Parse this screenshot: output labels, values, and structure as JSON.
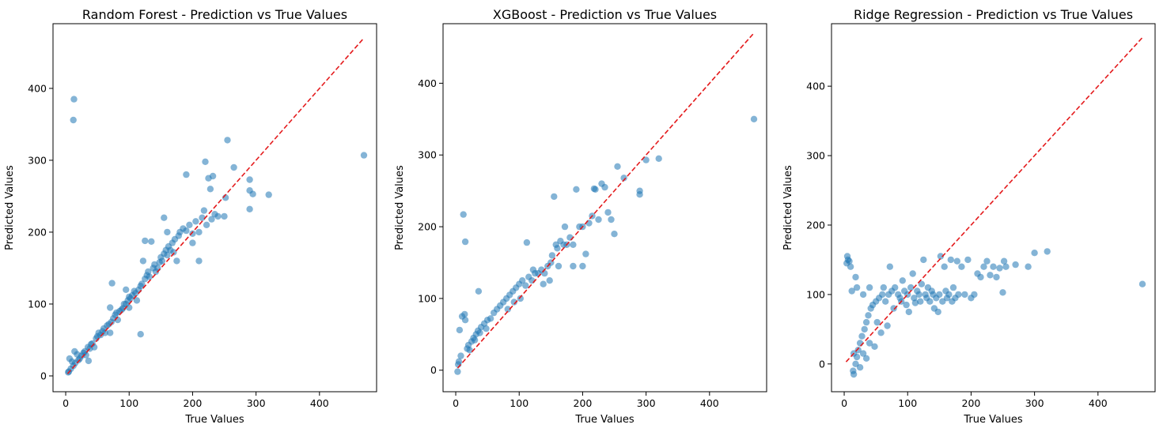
{
  "chart_data": [
    {
      "type": "scatter",
      "title": "Random Forest - Prediction vs True Values",
      "xlabel": "True Values",
      "ylabel": "Predicted Values",
      "xlim": [
        -20,
        490
      ],
      "ylim": [
        -22,
        490
      ],
      "xticks": [
        0,
        100,
        200,
        300,
        400
      ],
      "yticks": [
        0,
        100,
        200,
        300,
        400
      ],
      "grid": false,
      "reference_line": {
        "style": "dashed",
        "color": "#e41a1c",
        "from": [
          3,
          3
        ],
        "to": [
          470,
          470
        ]
      },
      "points_color": "#1f77b4",
      "points": [
        [
          4,
          5
        ],
        [
          5,
          6
        ],
        [
          6,
          24
        ],
        [
          8,
          10
        ],
        [
          10,
          20
        ],
        [
          12,
          14
        ],
        [
          13,
          385
        ],
        [
          12,
          356
        ],
        [
          14,
          34
        ],
        [
          15,
          18
        ],
        [
          18,
          30
        ],
        [
          20,
          22
        ],
        [
          22,
          24
        ],
        [
          25,
          28
        ],
        [
          28,
          32
        ],
        [
          30,
          34
        ],
        [
          32,
          29
        ],
        [
          35,
          40
        ],
        [
          36,
          21
        ],
        [
          38,
          38
        ],
        [
          40,
          44
        ],
        [
          42,
          45
        ],
        [
          45,
          40
        ],
        [
          48,
          52
        ],
        [
          50,
          55
        ],
        [
          52,
          60
        ],
        [
          55,
          57
        ],
        [
          58,
          62
        ],
        [
          60,
          66
        ],
        [
          62,
          60
        ],
        [
          65,
          70
        ],
        [
          68,
          72
        ],
        [
          70,
          60
        ],
        [
          70,
          95
        ],
        [
          72,
          75
        ],
        [
          73,
          129
        ],
        [
          75,
          80
        ],
        [
          78,
          85
        ],
        [
          80,
          88
        ],
        [
          82,
          78
        ],
        [
          85,
          90
        ],
        [
          88,
          92
        ],
        [
          90,
          94
        ],
        [
          92,
          100
        ],
        [
          95,
          100
        ],
        [
          95,
          120
        ],
        [
          98,
          105
        ],
        [
          100,
          95
        ],
        [
          100,
          110
        ],
        [
          102,
          108
        ],
        [
          105,
          112
        ],
        [
          108,
          118
        ],
        [
          110,
          115
        ],
        [
          112,
          105
        ],
        [
          115,
          120
        ],
        [
          118,
          58
        ],
        [
          118,
          125
        ],
        [
          120,
          128
        ],
        [
          122,
          160
        ],
        [
          125,
          135
        ],
        [
          125,
          188
        ],
        [
          128,
          140
        ],
        [
          130,
          145
        ],
        [
          132,
          138
        ],
        [
          135,
          187
        ],
        [
          138,
          150
        ],
        [
          140,
          155
        ],
        [
          142,
          145
        ],
        [
          145,
          150
        ],
        [
          148,
          158
        ],
        [
          150,
          165
        ],
        [
          152,
          160
        ],
        [
          155,
          170
        ],
        [
          155,
          220
        ],
        [
          158,
          175
        ],
        [
          160,
          168
        ],
        [
          160,
          200
        ],
        [
          162,
          180
        ],
        [
          165,
          175
        ],
        [
          168,
          185
        ],
        [
          170,
          172
        ],
        [
          172,
          190
        ],
        [
          175,
          160
        ],
        [
          178,
          195
        ],
        [
          180,
          200
        ],
        [
          185,
          205
        ],
        [
          190,
          202
        ],
        [
          190,
          280
        ],
        [
          195,
          210
        ],
        [
          200,
          198
        ],
        [
          200,
          185
        ],
        [
          205,
          215
        ],
        [
          210,
          200
        ],
        [
          210,
          160
        ],
        [
          215,
          220
        ],
        [
          218,
          230
        ],
        [
          220,
          298
        ],
        [
          222,
          210
        ],
        [
          225,
          275
        ],
        [
          228,
          260
        ],
        [
          230,
          218
        ],
        [
          232,
          278
        ],
        [
          235,
          225
        ],
        [
          240,
          222
        ],
        [
          250,
          222
        ],
        [
          252,
          248
        ],
        [
          255,
          328
        ],
        [
          265,
          290
        ],
        [
          290,
          232
        ],
        [
          290,
          258
        ],
        [
          290,
          273
        ],
        [
          295,
          253
        ],
        [
          320,
          252
        ],
        [
          470,
          307
        ]
      ]
    },
    {
      "type": "scatter",
      "title": "XGBoost - Prediction vs True Values",
      "xlabel": "True Values",
      "ylabel": "Predicted Values",
      "xlim": [
        -20,
        490
      ],
      "ylim": [
        -30,
        483
      ],
      "xticks": [
        0,
        100,
        200,
        300,
        400
      ],
      "yticks": [
        0,
        100,
        200,
        300,
        400
      ],
      "grid": false,
      "reference_line": {
        "style": "dashed",
        "color": "#e41a1c",
        "from": [
          3,
          3
        ],
        "to": [
          470,
          470
        ]
      },
      "points_color": "#1f77b4",
      "points": [
        [
          3,
          -2
        ],
        [
          4,
          8
        ],
        [
          5,
          12
        ],
        [
          6,
          56
        ],
        [
          8,
          20
        ],
        [
          10,
          75
        ],
        [
          12,
          217
        ],
        [
          14,
          78
        ],
        [
          15,
          179
        ],
        [
          15,
          70
        ],
        [
          18,
          30
        ],
        [
          20,
          35
        ],
        [
          22,
          28
        ],
        [
          25,
          40
        ],
        [
          28,
          45
        ],
        [
          30,
          42
        ],
        [
          32,
          50
        ],
        [
          35,
          55
        ],
        [
          36,
          110
        ],
        [
          38,
          52
        ],
        [
          40,
          60
        ],
        [
          45,
          65
        ],
        [
          48,
          58
        ],
        [
          50,
          70
        ],
        [
          55,
          72
        ],
        [
          60,
          80
        ],
        [
          65,
          85
        ],
        [
          70,
          90
        ],
        [
          75,
          95
        ],
        [
          80,
          100
        ],
        [
          82,
          85
        ],
        [
          85,
          105
        ],
        [
          90,
          110
        ],
        [
          92,
          95
        ],
        [
          95,
          115
        ],
        [
          100,
          120
        ],
        [
          102,
          100
        ],
        [
          105,
          125
        ],
        [
          110,
          118
        ],
        [
          112,
          178
        ],
        [
          115,
          130
        ],
        [
          120,
          125
        ],
        [
          122,
          140
        ],
        [
          125,
          135
        ],
        [
          130,
          135
        ],
        [
          135,
          140
        ],
        [
          138,
          120
        ],
        [
          140,
          135
        ],
        [
          145,
          145
        ],
        [
          148,
          125
        ],
        [
          150,
          150
        ],
        [
          152,
          160
        ],
        [
          155,
          242
        ],
        [
          158,
          175
        ],
        [
          160,
          170
        ],
        [
          162,
          145
        ],
        [
          165,
          180
        ],
        [
          170,
          175
        ],
        [
          172,
          200
        ],
        [
          175,
          175
        ],
        [
          180,
          185
        ],
        [
          185,
          175
        ],
        [
          185,
          145
        ],
        [
          190,
          252
        ],
        [
          195,
          200
        ],
        [
          200,
          200
        ],
        [
          200,
          145
        ],
        [
          205,
          162
        ],
        [
          210,
          205
        ],
        [
          215,
          215
        ],
        [
          218,
          253
        ],
        [
          220,
          252
        ],
        [
          225,
          210
        ],
        [
          230,
          260
        ],
        [
          235,
          255
        ],
        [
          240,
          220
        ],
        [
          245,
          210
        ],
        [
          250,
          190
        ],
        [
          255,
          284
        ],
        [
          265,
          268
        ],
        [
          290,
          245
        ],
        [
          290,
          250
        ],
        [
          300,
          293
        ],
        [
          320,
          295
        ],
        [
          470,
          350
        ]
      ]
    },
    {
      "type": "scatter",
      "title": "Ridge Regression - Prediction vs True Values",
      "xlabel": "True Values",
      "ylabel": "Predicted Values",
      "xlim": [
        -20,
        490
      ],
      "ylim": [
        -40,
        490
      ],
      "xticks": [
        0,
        100,
        200,
        300,
        400
      ],
      "yticks": [
        0,
        100,
        200,
        300,
        400
      ],
      "grid": false,
      "reference_line": {
        "style": "dashed",
        "color": "#e41a1c",
        "from": [
          3,
          3
        ],
        "to": [
          470,
          470
        ]
      },
      "points_color": "#1f77b4",
      "points": [
        [
          4,
          145
        ],
        [
          5,
          155
        ],
        [
          6,
          150
        ],
        [
          8,
          148
        ],
        [
          10,
          140
        ],
        [
          12,
          105
        ],
        [
          14,
          -10
        ],
        [
          15,
          -15
        ],
        [
          15,
          15
        ],
        [
          18,
          0
        ],
        [
          18,
          125
        ],
        [
          20,
          10
        ],
        [
          20,
          110
        ],
        [
          22,
          20
        ],
        [
          25,
          -5
        ],
        [
          25,
          30
        ],
        [
          28,
          40
        ],
        [
          30,
          15
        ],
        [
          30,
          100
        ],
        [
          32,
          50
        ],
        [
          35,
          8
        ],
        [
          35,
          60
        ],
        [
          38,
          70
        ],
        [
          40,
          30
        ],
        [
          40,
          110
        ],
        [
          42,
          80
        ],
        [
          45,
          85
        ],
        [
          48,
          25
        ],
        [
          50,
          90
        ],
        [
          52,
          60
        ],
        [
          55,
          95
        ],
        [
          58,
          45
        ],
        [
          60,
          100
        ],
        [
          62,
          110
        ],
        [
          65,
          90
        ],
        [
          68,
          55
        ],
        [
          70,
          100
        ],
        [
          72,
          140
        ],
        [
          75,
          105
        ],
        [
          78,
          80
        ],
        [
          80,
          110
        ],
        [
          85,
          100
        ],
        [
          88,
          95
        ],
        [
          90,
          90
        ],
        [
          92,
          120
        ],
        [
          95,
          105
        ],
        [
          98,
          85
        ],
        [
          100,
          100
        ],
        [
          102,
          75
        ],
        [
          105,
          110
        ],
        [
          108,
          130
        ],
        [
          110,
          95
        ],
        [
          112,
          88
        ],
        [
          115,
          105
        ],
        [
          118,
          100
        ],
        [
          120,
          90
        ],
        [
          122,
          115
        ],
        [
          125,
          150
        ],
        [
          128,
          100
        ],
        [
          130,
          95
        ],
        [
          132,
          110
        ],
        [
          135,
          90
        ],
        [
          138,
          105
        ],
        [
          140,
          100
        ],
        [
          142,
          80
        ],
        [
          145,
          95
        ],
        [
          148,
          75
        ],
        [
          150,
          100
        ],
        [
          152,
          155
        ],
        [
          155,
          90
        ],
        [
          158,
          140
        ],
        [
          160,
          105
        ],
        [
          162,
          95
        ],
        [
          165,
          100
        ],
        [
          168,
          150
        ],
        [
          170,
          90
        ],
        [
          172,
          110
        ],
        [
          175,
          95
        ],
        [
          178,
          148
        ],
        [
          180,
          100
        ],
        [
          185,
          140
        ],
        [
          190,
          100
        ],
        [
          195,
          150
        ],
        [
          200,
          95
        ],
        [
          205,
          100
        ],
        [
          210,
          130
        ],
        [
          215,
          125
        ],
        [
          220,
          140
        ],
        [
          225,
          148
        ],
        [
          230,
          128
        ],
        [
          235,
          140
        ],
        [
          240,
          125
        ],
        [
          245,
          138
        ],
        [
          250,
          103
        ],
        [
          252,
          148
        ],
        [
          255,
          140
        ],
        [
          270,
          143
        ],
        [
          290,
          140
        ],
        [
          300,
          160
        ],
        [
          320,
          162
        ],
        [
          470,
          115
        ]
      ]
    }
  ]
}
